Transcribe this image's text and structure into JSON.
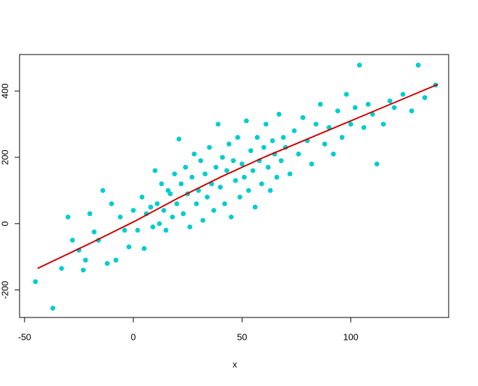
{
  "chart_data": {
    "type": "scatter",
    "xlabel": "x",
    "xlim": [
      -52.3,
      145
    ],
    "ylim": [
      -283,
      510
    ],
    "xticks": [
      -50,
      0,
      50,
      100
    ],
    "yticks": [
      -200,
      0,
      200,
      400
    ],
    "scatter": {
      "color": "#00cdcd",
      "x": [
        -45,
        -37,
        -33,
        -30,
        -28,
        -25,
        -23,
        -22,
        -20,
        -18,
        -16,
        -14,
        -12,
        -10,
        -8,
        -6,
        -4,
        -2,
        0,
        2,
        4,
        5,
        6,
        8,
        9,
        10,
        11,
        12,
        13,
        14,
        15,
        16,
        17,
        18,
        19,
        20,
        21,
        22,
        23,
        24,
        25,
        26,
        27,
        28,
        29,
        30,
        31,
        32,
        33,
        34,
        35,
        36,
        37,
        38,
        39,
        40,
        41,
        42,
        43,
        44,
        45,
        46,
        47,
        48,
        49,
        50,
        51,
        52,
        53,
        54,
        55,
        56,
        57,
        58,
        59,
        60,
        61,
        62,
        63,
        64,
        65,
        66,
        67,
        68,
        69,
        70,
        72,
        74,
        76,
        78,
        80,
        82,
        84,
        86,
        88,
        90,
        92,
        94,
        96,
        98,
        100,
        102,
        104,
        106,
        108,
        110,
        112,
        115,
        118,
        120,
        124,
        128,
        131,
        134,
        139
      ],
      "y": [
        -175,
        -255,
        -135,
        20,
        -50,
        -80,
        -140,
        -110,
        30,
        -25,
        -50,
        100,
        -120,
        60,
        -110,
        20,
        -20,
        -70,
        40,
        -20,
        80,
        -75,
        30,
        50,
        -10,
        160,
        60,
        0,
        120,
        40,
        -20,
        100,
        90,
        20,
        150,
        60,
        255,
        120,
        30,
        170,
        90,
        -10,
        140,
        210,
        60,
        100,
        190,
        10,
        150,
        80,
        230,
        120,
        40,
        170,
        300,
        110,
        200,
        60,
        160,
        240,
        20,
        190,
        130,
        260,
        80,
        180,
        140,
        310,
        100,
        220,
        160,
        50,
        260,
        190,
        120,
        230,
        300,
        170,
        100,
        250,
        210,
        140,
        330,
        190,
        260,
        230,
        150,
        280,
        210,
        320,
        250,
        180,
        300,
        360,
        240,
        290,
        210,
        340,
        260,
        390,
        300,
        350,
        478,
        290,
        360,
        330,
        180,
        300,
        370,
        350,
        390,
        340,
        478,
        380,
        418
      ]
    },
    "line": {
      "color": "#cc0000",
      "x": [
        -44,
        -20,
        0,
        20,
        40,
        60,
        80,
        100,
        120,
        140
      ],
      "y": [
        -135,
        -60,
        5,
        75,
        140,
        200,
        255,
        310,
        365,
        420
      ]
    }
  }
}
